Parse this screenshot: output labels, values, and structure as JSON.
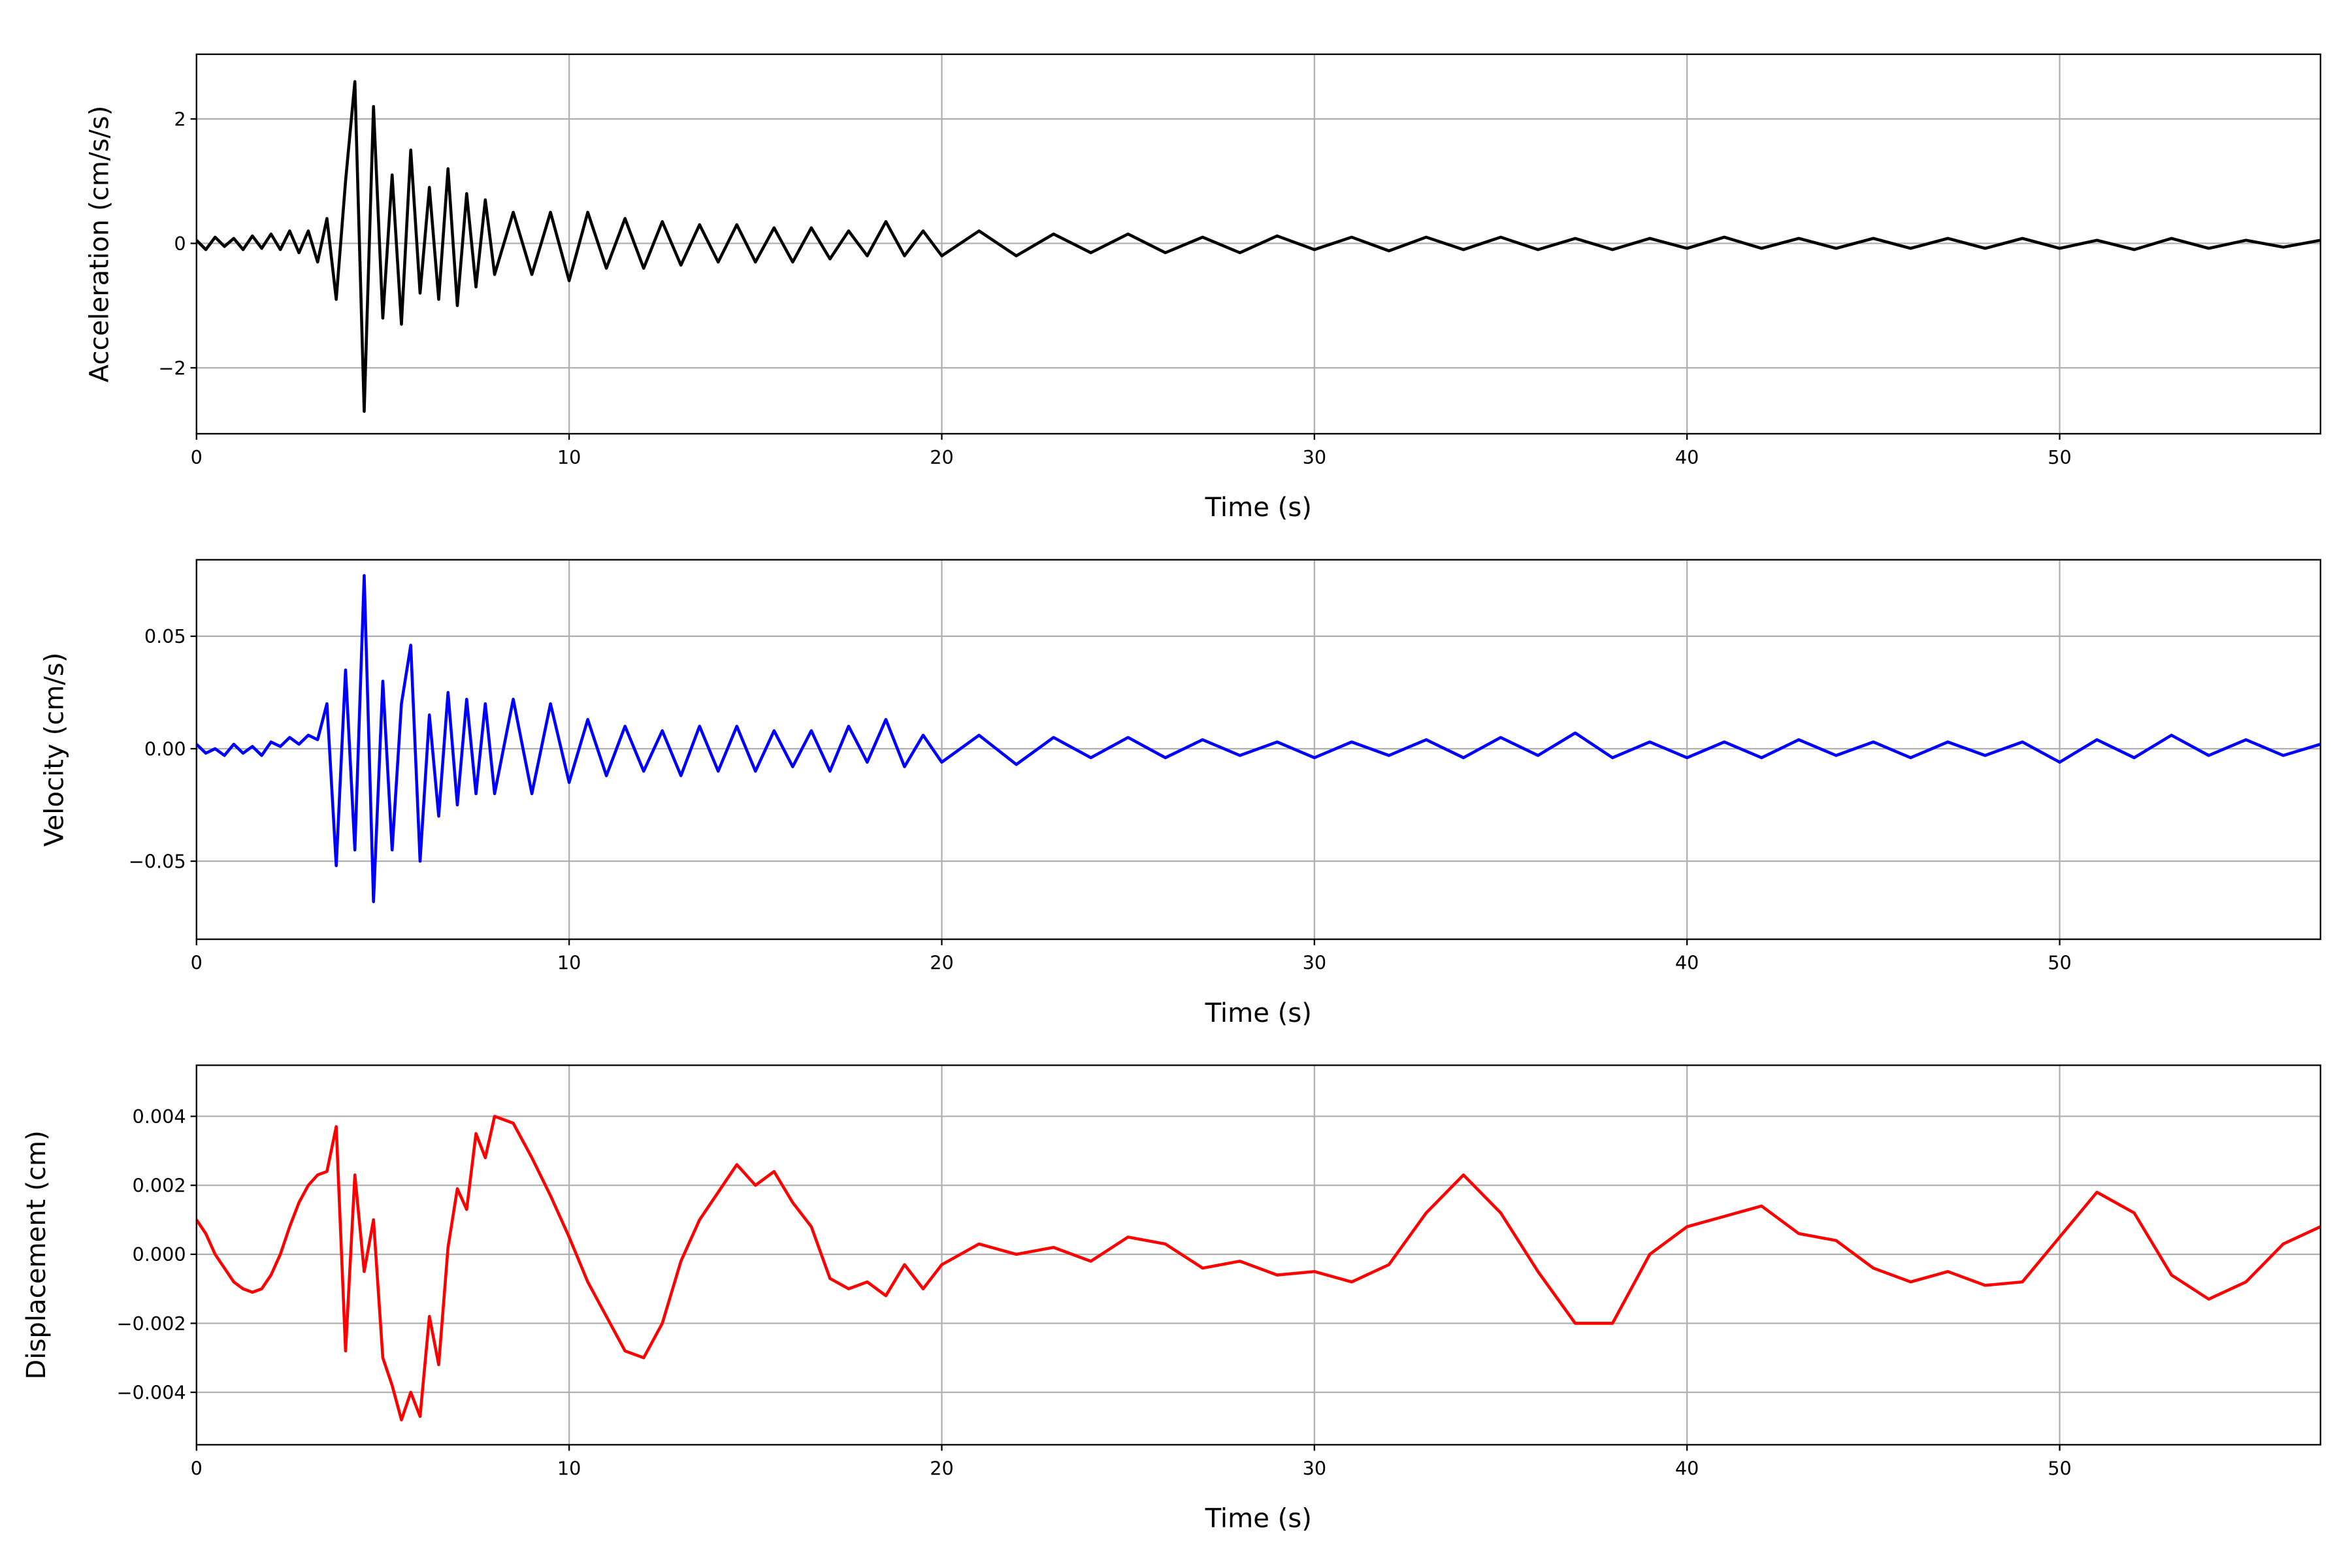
{
  "chart_data": [
    {
      "type": "line",
      "xlabel": "Time (s)",
      "ylabel": "Acceleration (cm/s/s)",
      "color": "#000000",
      "grid": true,
      "xlim": [
        0,
        57
      ],
      "xticks": [
        0,
        10,
        20,
        30,
        40,
        50
      ],
      "ylim": [
        -3.06,
        3.04
      ],
      "yticks": [
        {
          "value": -2,
          "label": "−2"
        },
        0,
        2
      ],
      "x": [
        0,
        0.25,
        0.5,
        0.75,
        1,
        1.25,
        1.5,
        1.75,
        2,
        2.25,
        2.5,
        2.75,
        3,
        3.25,
        3.5,
        3.75,
        4,
        4.25,
        4.5,
        4.75,
        5,
        5.25,
        5.5,
        5.75,
        6,
        6.25,
        6.5,
        6.75,
        7,
        7.25,
        7.5,
        7.75,
        8,
        8.5,
        9,
        9.5,
        10,
        10.5,
        11,
        11.5,
        12,
        12.5,
        13,
        13.5,
        14,
        14.5,
        15,
        15.5,
        16,
        16.5,
        17,
        17.5,
        18,
        18.5,
        19,
        19.5,
        20,
        21,
        22,
        23,
        24,
        25,
        26,
        27,
        28,
        29,
        30,
        31,
        32,
        33,
        34,
        35,
        36,
        37,
        38,
        39,
        40,
        41,
        42,
        43,
        44,
        45,
        46,
        47,
        48,
        49,
        50,
        51,
        52,
        53,
        54,
        55,
        56,
        57
      ],
      "values": [
        0.05,
        -0.1,
        0.1,
        -0.05,
        0.08,
        -0.1,
        0.12,
        -0.08,
        0.15,
        -0.1,
        0.2,
        -0.15,
        0.2,
        -0.3,
        0.4,
        -0.9,
        1.0,
        2.6,
        -2.7,
        2.2,
        -1.2,
        1.1,
        -1.3,
        1.5,
        -0.8,
        0.9,
        -0.9,
        1.2,
        -1.0,
        0.8,
        -0.7,
        0.7,
        -0.5,
        0.5,
        -0.5,
        0.5,
        -0.6,
        0.5,
        -0.4,
        0.4,
        -0.4,
        0.35,
        -0.35,
        0.3,
        -0.3,
        0.3,
        -0.3,
        0.25,
        -0.3,
        0.25,
        -0.25,
        0.2,
        -0.2,
        0.35,
        -0.2,
        0.2,
        -0.2,
        0.2,
        -0.2,
        0.15,
        -0.15,
        0.15,
        -0.15,
        0.1,
        -0.15,
        0.12,
        -0.1,
        0.1,
        -0.12,
        0.1,
        -0.1,
        0.1,
        -0.1,
        0.08,
        -0.1,
        0.08,
        -0.08,
        0.1,
        -0.08,
        0.08,
        -0.08,
        0.08,
        -0.08,
        0.08,
        -0.08,
        0.08,
        -0.08,
        0.05,
        -0.1,
        0.08,
        -0.08,
        0.05,
        -0.06,
        0.05
      ]
    },
    {
      "type": "line",
      "xlabel": "Time (s)",
      "ylabel": "Velocity (cm/s)",
      "color": "#0000ff",
      "grid": true,
      "xlim": [
        0,
        57
      ],
      "xticks": [
        0,
        10,
        20,
        30,
        40,
        50
      ],
      "ylim": [
        -0.0847,
        0.084
      ],
      "yticks": [
        {
          "value": -0.05,
          "label": "−0.05"
        },
        {
          "value": 0,
          "label": "0.00"
        },
        0.05
      ],
      "x": [
        0,
        0.25,
        0.5,
        0.75,
        1,
        1.25,
        1.5,
        1.75,
        2,
        2.25,
        2.5,
        2.75,
        3,
        3.25,
        3.5,
        3.75,
        4,
        4.25,
        4.5,
        4.75,
        5,
        5.25,
        5.5,
        5.75,
        6,
        6.25,
        6.5,
        6.75,
        7,
        7.25,
        7.5,
        7.75,
        8,
        8.5,
        9,
        9.5,
        10,
        10.5,
        11,
        11.5,
        12,
        12.5,
        13,
        13.5,
        14,
        14.5,
        15,
        15.5,
        16,
        16.5,
        17,
        17.5,
        18,
        18.5,
        19,
        19.5,
        20,
        21,
        22,
        23,
        24,
        25,
        26,
        27,
        28,
        29,
        30,
        31,
        32,
        33,
        34,
        35,
        36,
        37,
        38,
        39,
        40,
        41,
        42,
        43,
        44,
        45,
        46,
        47,
        48,
        49,
        50,
        51,
        52,
        53,
        54,
        55,
        56,
        57
      ],
      "values": [
        0.002,
        -0.002,
        0,
        -0.003,
        0.002,
        -0.002,
        0.001,
        -0.003,
        0.003,
        0.001,
        0.005,
        0.002,
        0.006,
        0.004,
        0.02,
        -0.052,
        0.035,
        -0.045,
        0.077,
        -0.068,
        0.03,
        -0.045,
        0.02,
        0.046,
        -0.05,
        0.015,
        -0.03,
        0.025,
        -0.025,
        0.022,
        -0.02,
        0.02,
        -0.02,
        0.022,
        -0.02,
        0.02,
        -0.015,
        0.013,
        -0.012,
        0.01,
        -0.01,
        0.008,
        -0.012,
        0.01,
        -0.01,
        0.01,
        -0.01,
        0.008,
        -0.008,
        0.008,
        -0.01,
        0.01,
        -0.006,
        0.013,
        -0.008,
        0.006,
        -0.006,
        0.006,
        -0.007,
        0.005,
        -0.004,
        0.005,
        -0.004,
        0.004,
        -0.003,
        0.003,
        -0.004,
        0.003,
        -0.003,
        0.004,
        -0.004,
        0.005,
        -0.003,
        0.007,
        -0.004,
        0.003,
        -0.004,
        0.003,
        -0.004,
        0.004,
        -0.003,
        0.003,
        -0.004,
        0.003,
        -0.003,
        0.003,
        -0.006,
        0.004,
        -0.004,
        0.006,
        -0.003,
        0.004,
        -0.003,
        0.002
      ]
    },
    {
      "type": "line",
      "xlabel": "Time (s)",
      "ylabel": "Displacement (cm)",
      "color": "#ff0000",
      "grid": true,
      "xlim": [
        0,
        57
      ],
      "xticks": [
        0,
        10,
        20,
        30,
        40,
        50
      ],
      "ylim": [
        -0.00552,
        0.00548
      ],
      "yticks": [
        {
          "value": -0.004,
          "label": "−0.004"
        },
        {
          "value": -0.002,
          "label": "−0.002"
        },
        {
          "value": 0,
          "label": "0.000"
        },
        0.002,
        0.004
      ],
      "x": [
        0,
        0.25,
        0.5,
        0.75,
        1,
        1.25,
        1.5,
        1.75,
        2,
        2.25,
        2.5,
        2.75,
        3,
        3.25,
        3.5,
        3.75,
        4,
        4.25,
        4.5,
        4.75,
        5,
        5.25,
        5.5,
        5.75,
        6,
        6.25,
        6.5,
        6.75,
        7,
        7.25,
        7.5,
        7.75,
        8,
        8.5,
        9,
        9.5,
        10,
        10.5,
        11,
        11.5,
        12,
        12.5,
        13,
        13.5,
        14,
        14.5,
        15,
        15.5,
        16,
        16.5,
        17,
        17.5,
        18,
        18.5,
        19,
        19.5,
        20,
        21,
        22,
        23,
        24,
        25,
        26,
        27,
        28,
        29,
        30,
        31,
        32,
        33,
        34,
        35,
        36,
        37,
        38,
        39,
        40,
        41,
        42,
        43,
        44,
        45,
        46,
        47,
        48,
        49,
        50,
        51,
        52,
        53,
        54,
        55,
        56,
        57
      ],
      "values": [
        0.001,
        0.0006,
        0.0,
        -0.0004,
        -0.0008,
        -0.001,
        -0.0011,
        -0.001,
        -0.0006,
        0,
        0.0008,
        0.0015,
        0.002,
        0.0023,
        0.0024,
        0.0037,
        -0.0028,
        0.0023,
        -0.0005,
        0.001,
        -0.003,
        -0.0038,
        -0.0048,
        -0.004,
        -0.0047,
        -0.0018,
        -0.0032,
        0.0002,
        0.0019,
        0.0013,
        0.0035,
        0.0028,
        0.004,
        0.0038,
        0.0028,
        0.0017,
        0.0005,
        -0.0008,
        -0.0018,
        -0.0028,
        -0.003,
        -0.002,
        -0.0002,
        0.001,
        0.0018,
        0.0026,
        0.002,
        0.0024,
        0.0015,
        0.0008,
        -0.0007,
        -0.001,
        -0.0008,
        -0.0012,
        -0.0003,
        -0.001,
        -0.0003,
        0.0003,
        0.0,
        0.0002,
        -0.0002,
        0.0005,
        0.0003,
        -0.0004,
        -0.0002,
        -0.0006,
        -0.0005,
        -0.0008,
        -0.0003,
        0.0012,
        0.0023,
        0.0012,
        -0.0005,
        -0.002,
        -0.002,
        0.0,
        0.0008,
        0.0011,
        0.0014,
        0.0006,
        0.0004,
        -0.0004,
        -0.0008,
        -0.0005,
        -0.0009,
        -0.0008,
        0.0005,
        0.0018,
        0.0012,
        -0.0006,
        -0.0013,
        -0.0008,
        0.0003,
        0.0008
      ]
    }
  ]
}
